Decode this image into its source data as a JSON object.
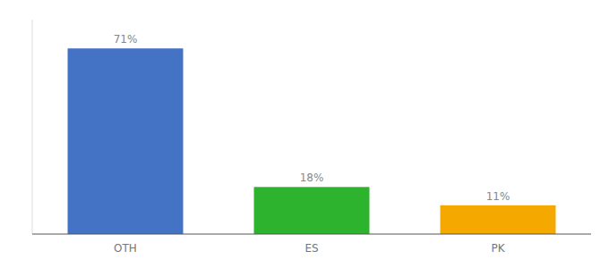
{
  "chart_data": {
    "type": "bar",
    "categories": [
      "OTH",
      "ES",
      "PK"
    ],
    "values": [
      71,
      18,
      11
    ],
    "value_labels": [
      "71%",
      "18%",
      "11%"
    ],
    "data_labels": true,
    "colors": [
      "#4472c4",
      "#2db32d",
      "#f5a800"
    ],
    "ylim": [
      0,
      82
    ],
    "tick_labels": "x"
  }
}
